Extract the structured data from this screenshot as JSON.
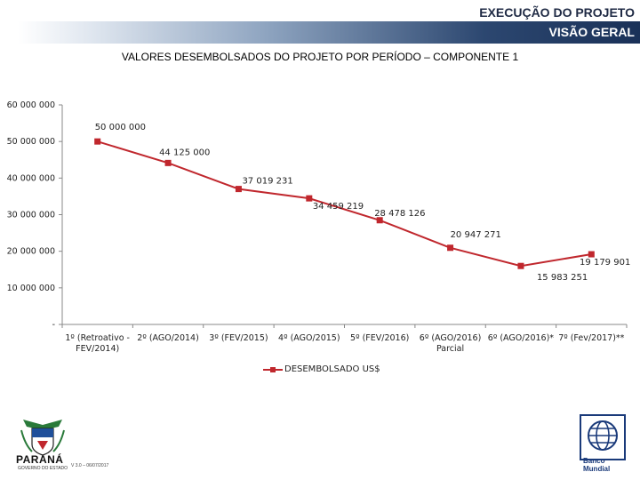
{
  "header": {
    "title": "EXECUÇÃO DO PROJETO",
    "subtitle": "VISÃO GERAL"
  },
  "chart_data": {
    "type": "line",
    "title": "VALORES DESEMBOLSADOS DO PROJETO POR PERÍODO – COMPONENTE 1",
    "xlabel": "",
    "ylabel": "",
    "ylim": [
      0,
      60000000
    ],
    "yticks": [
      0,
      10000000,
      20000000,
      30000000,
      40000000,
      50000000,
      60000000
    ],
    "ytick_labels": [
      "-",
      "10 000 000",
      "20 000 000",
      "30 000 000",
      "40 000 000",
      "50 000 000",
      "60 000 000"
    ],
    "categories": [
      [
        "1º (Retroativo -",
        "FEV/2014)"
      ],
      [
        "2º (AGO/2014)"
      ],
      [
        "3º (FEV/2015)"
      ],
      [
        "4º (AGO/2015)"
      ],
      [
        "5º (FEV/2016)"
      ],
      [
        "6º (AGO/2016)",
        "Parcial"
      ],
      [
        "6º (AGO/2016)*"
      ],
      [
        "7º (Fev/2017)**"
      ]
    ],
    "series": [
      {
        "name": "DESEMBOLSADO US$",
        "color": "#c0272d",
        "values": [
          50000000,
          44125000,
          37019231,
          34459219,
          28478126,
          20947271,
          15983251,
          19179901
        ],
        "labels": [
          "50 000 000",
          "44 125 000",
          "37 019 231",
          "34 459 219",
          "28 478 126",
          "20 947 271",
          "15 983 251",
          "19 179 901"
        ]
      }
    ],
    "grid": false,
    "legend_position": "bottom"
  },
  "footer": {
    "left_logo_text": "PARANÁ",
    "left_logo_subtext": "GOVERNO DO ESTADO",
    "version_text": "V 3.0 – 06/07/2017",
    "right_logo_text": [
      "Banco",
      "Mundial"
    ]
  }
}
